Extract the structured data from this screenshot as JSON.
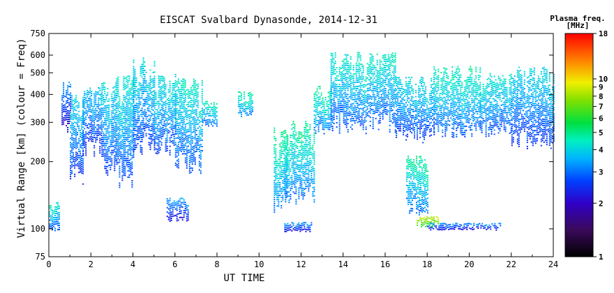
{
  "chart_data": {
    "type": "heatmap",
    "title": "EISCAT Svalbard Dynasonde, 2014-12-31",
    "xlabel": "UT TIME",
    "ylabel": "Virtual Range [km] (colour = Freq)",
    "x_ticks": [
      "0",
      "2",
      "4",
      "6",
      "8",
      "10",
      "12",
      "14",
      "16",
      "18",
      "20",
      "22",
      "24"
    ],
    "xlim": [
      0,
      24
    ],
    "y_scale": "log",
    "y_ticks": [
      "75",
      "100",
      "200",
      "300",
      "400",
      "500",
      "600",
      "750"
    ],
    "ylim": [
      75,
      750
    ],
    "colorbar": {
      "title": "Plasma freq.",
      "unit": "[MHz]",
      "scale": "log",
      "ticks": [
        "1",
        "2",
        "3",
        "4",
        "5",
        "6",
        "7",
        "8",
        "9",
        "10",
        "18"
      ],
      "range": [
        1,
        18
      ]
    },
    "regions": [
      {
        "t0": 0.0,
        "t1": 0.5,
        "r0": 95,
        "r1": 135,
        "f": 3.8
      },
      {
        "t0": 0.6,
        "t1": 1.0,
        "r0": 260,
        "r1": 470,
        "f": 2.8
      },
      {
        "t0": 1.0,
        "t1": 1.6,
        "r0": 140,
        "r1": 420,
        "f": 3.5
      },
      {
        "t0": 1.6,
        "t1": 2.5,
        "r0": 200,
        "r1": 450,
        "f": 3.3
      },
      {
        "t0": 2.5,
        "t1": 3.2,
        "r0": 150,
        "r1": 480,
        "f": 3.6
      },
      {
        "t0": 3.2,
        "t1": 4.0,
        "r0": 140,
        "r1": 520,
        "f": 3.8
      },
      {
        "t0": 4.0,
        "t1": 5.0,
        "r0": 200,
        "r1": 620,
        "f": 3.6
      },
      {
        "t0": 5.0,
        "t1": 6.0,
        "r0": 200,
        "r1": 520,
        "f": 3.7
      },
      {
        "t0": 6.0,
        "t1": 7.3,
        "r0": 160,
        "r1": 500,
        "f": 3.9
      },
      {
        "t0": 7.3,
        "t1": 8.0,
        "r0": 280,
        "r1": 380,
        "f": 4.0
      },
      {
        "t0": 5.6,
        "t1": 6.6,
        "r0": 105,
        "r1": 140,
        "f": 2.9
      },
      {
        "t0": 9.0,
        "t1": 9.7,
        "r0": 300,
        "r1": 420,
        "f": 4.2
      },
      {
        "t0": 10.7,
        "t1": 11.3,
        "r0": 110,
        "r1": 300,
        "f": 4.3
      },
      {
        "t0": 11.2,
        "t1": 12.6,
        "r0": 120,
        "r1": 320,
        "f": 4.2
      },
      {
        "t0": 11.2,
        "t1": 12.5,
        "r0": 95,
        "r1": 108,
        "f": 2.8
      },
      {
        "t0": 12.6,
        "t1": 13.4,
        "r0": 250,
        "r1": 450,
        "f": 4.2
      },
      {
        "t0": 13.4,
        "t1": 16.5,
        "r0": 250,
        "r1": 650,
        "f": 3.9
      },
      {
        "t0": 16.5,
        "t1": 18.3,
        "r0": 230,
        "r1": 500,
        "f": 3.6
      },
      {
        "t0": 18.3,
        "t1": 20.5,
        "r0": 240,
        "r1": 560,
        "f": 4.0
      },
      {
        "t0": 20.5,
        "t1": 22.0,
        "r0": 240,
        "r1": 520,
        "f": 3.8
      },
      {
        "t0": 22.0,
        "t1": 24.0,
        "r0": 210,
        "r1": 560,
        "f": 3.5
      },
      {
        "t0": 17.5,
        "t1": 18.5,
        "r0": 100,
        "r1": 115,
        "f": 7.5
      },
      {
        "t0": 18.0,
        "t1": 21.5,
        "r0": 97,
        "r1": 107,
        "f": 2.7
      },
      {
        "t0": 17.0,
        "t1": 18.0,
        "r0": 110,
        "r1": 220,
        "f": 4.2
      }
    ]
  },
  "colors": {
    "background": "#ffffff",
    "axes": "#000000"
  }
}
